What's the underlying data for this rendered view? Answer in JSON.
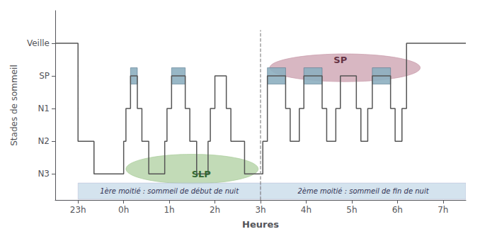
{
  "chart_data": {
    "type": "line",
    "xlabel": "Heures",
    "ylabel": "Stades de sommeil",
    "xlim": [
      -1.5,
      7.5
    ],
    "ylim": [
      0.2,
      6.0
    ],
    "xticks": [
      {
        "value": -1,
        "label": "23h"
      },
      {
        "value": 0,
        "label": "0h"
      },
      {
        "value": 1,
        "label": "1h"
      },
      {
        "value": 2,
        "label": "2h"
      },
      {
        "value": 3,
        "label": "3h"
      },
      {
        "value": 4,
        "label": "4h"
      },
      {
        "value": 5,
        "label": "5h"
      },
      {
        "value": 6,
        "label": "6h"
      },
      {
        "value": 7,
        "label": "7h"
      }
    ],
    "yticks": [
      {
        "value": 5,
        "label": "Veille"
      },
      {
        "value": 4,
        "label": "SP"
      },
      {
        "value": 3,
        "label": "N1"
      },
      {
        "value": 2,
        "label": "N2"
      },
      {
        "value": 1,
        "label": "N3"
      }
    ],
    "grid": false,
    "x": [
      -1.5,
      -1.0,
      -1.0,
      -0.65,
      -0.65,
      0.0,
      0.0,
      0.05,
      0.05,
      0.15,
      0.15,
      0.3,
      0.3,
      0.4,
      0.4,
      0.55,
      0.55,
      0.9,
      0.9,
      0.95,
      0.95,
      1.05,
      1.05,
      1.35,
      1.35,
      1.45,
      1.45,
      1.6,
      1.6,
      1.85,
      1.85,
      1.9,
      1.9,
      2.0,
      2.0,
      2.25,
      2.25,
      2.35,
      2.35,
      2.65,
      2.65,
      3.05,
      3.05,
      3.15,
      3.15,
      3.55,
      3.55,
      3.65,
      3.65,
      3.85,
      3.85,
      3.95,
      3.95,
      4.35,
      4.35,
      4.45,
      4.45,
      4.65,
      4.65,
      4.75,
      4.75,
      5.1,
      5.1,
      5.2,
      5.2,
      5.35,
      5.35,
      5.45,
      5.45,
      5.85,
      5.85,
      5.95,
      5.95,
      6.1,
      6.1,
      6.2,
      6.2,
      7.0,
      7.5
    ],
    "values": [
      5,
      5,
      2,
      2,
      1,
      1,
      2,
      2,
      3,
      3,
      4,
      4,
      3,
      3,
      2,
      2,
      1,
      1,
      2,
      2,
      3,
      3,
      4,
      4,
      3,
      3,
      2,
      2,
      1,
      1,
      2,
      2,
      3,
      3,
      4,
      4,
      3,
      3,
      2,
      2,
      1,
      1,
      2,
      2,
      4,
      4,
      3,
      3,
      2,
      2,
      3,
      3,
      4,
      4,
      3,
      3,
      2,
      2,
      3,
      3,
      4,
      4,
      3,
      3,
      2,
      2,
      3,
      3,
      4,
      4,
      3,
      3,
      2,
      2,
      3,
      3,
      5,
      5,
      5
    ],
    "regions": [
      {
        "label": "SLP",
        "cx": 1.5,
        "cy": 1.15,
        "width": 2.9,
        "height": 0.9,
        "color": "#a8cc98",
        "label_x": 1.7,
        "label_y": 1.0
      },
      {
        "label": "SP",
        "cx": 4.85,
        "cy": 4.25,
        "width": 3.3,
        "height": 0.85,
        "color": "#c898a8",
        "label_x": 4.75,
        "label_y": 4.5
      }
    ],
    "sp_periods": {
      "color": "#8dafc0",
      "boxes": [
        {
          "x": 0.15,
          "width": 0.15,
          "y": 3.75,
          "height": 0.5
        },
        {
          "x": 1.05,
          "width": 0.3,
          "y": 3.75,
          "height": 0.5
        },
        {
          "x": 3.15,
          "width": 0.4,
          "y": 3.75,
          "height": 0.5
        },
        {
          "x": 3.95,
          "width": 0.4,
          "y": 3.75,
          "height": 0.5
        },
        {
          "x": 5.45,
          "width": 0.4,
          "y": 3.75,
          "height": 0.5
        }
      ]
    },
    "bands": [
      {
        "text": "1ère moitié : sommeil de début de nuit",
        "x": -1.0,
        "width": 4.0,
        "y": 0.22,
        "height": 0.5,
        "color": "#c5d9e8"
      },
      {
        "text": "2ème moitié : sommeil de fin de nuit",
        "x": 3.0,
        "width": 4.5,
        "y": 0.22,
        "height": 0.5,
        "color": "#c5d9e8"
      }
    ],
    "dashed_line": {
      "x": 3,
      "y": [
        0.2,
        5.4
      ]
    }
  }
}
